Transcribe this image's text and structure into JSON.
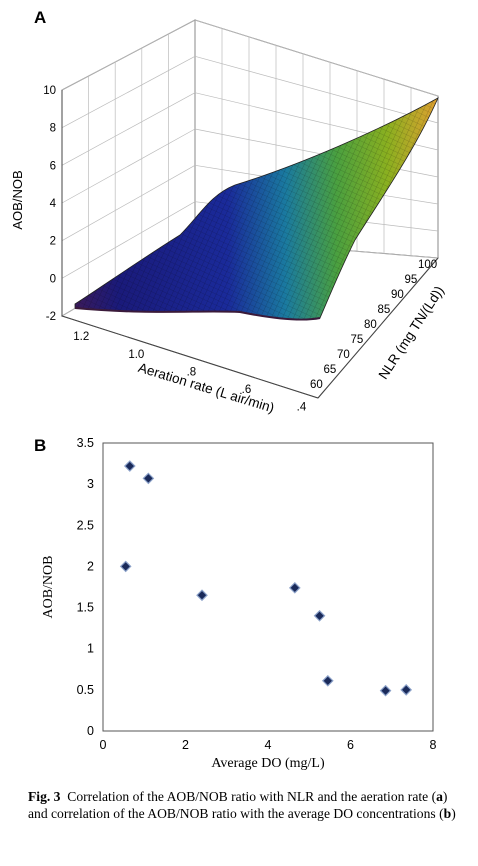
{
  "panel_a": {
    "letter": "A",
    "zlabel": "AOB/NOB",
    "xlabel": "Aeration rate (L air/min)",
    "ylabel": "NLR (mg TN/(Ld))",
    "z_ticks": [
      "10",
      "8",
      "6",
      "4",
      "2",
      "0",
      "-2"
    ],
    "x_ticks": [
      "1.2",
      "1.0",
      ".8",
      ".6",
      ".4"
    ],
    "y_ticks": [
      "100",
      "95",
      "90",
      "85",
      "80",
      "75",
      "70",
      "65",
      "60"
    ]
  },
  "panel_b": {
    "letter": "B",
    "ylabel": "AOB/NOB",
    "xlabel": "Average DO (mg/L)",
    "y_ticks": [
      "3.5",
      "3",
      "2.5",
      "2",
      "1.5",
      "1",
      "0.5",
      "0"
    ],
    "x_ticks": [
      "0",
      "2",
      "4",
      "6",
      "8"
    ]
  },
  "chart_data": [
    {
      "type": "surface",
      "xlabel": "Aeration rate (L air/min)",
      "ylabel": "NLR (mg TN/(Ld))",
      "zlabel": "AOB/NOB",
      "xlim": [
        0.4,
        1.3
      ],
      "ylim": [
        60,
        100
      ],
      "zlim": [
        -2,
        10
      ],
      "colors": [
        "#3a1a5a",
        "#1a2a9a",
        "#1a8aa0",
        "#6ab020",
        "#e0a030"
      ]
    },
    {
      "type": "scatter",
      "xlabel": "Average DO (mg/L)",
      "ylabel": "AOB/NOB",
      "xlim": [
        0,
        8
      ],
      "ylim": [
        0,
        3.5
      ],
      "grid": false,
      "marker_color": "#1a2a5a",
      "points": [
        {
          "x": 0.55,
          "y": 2.0
        },
        {
          "x": 0.65,
          "y": 3.22
        },
        {
          "x": 1.1,
          "y": 3.07
        },
        {
          "x": 2.4,
          "y": 1.65
        },
        {
          "x": 4.65,
          "y": 1.74
        },
        {
          "x": 5.25,
          "y": 1.4
        },
        {
          "x": 5.45,
          "y": 0.61
        },
        {
          "x": 6.85,
          "y": 0.49
        },
        {
          "x": 7.35,
          "y": 0.5
        }
      ]
    }
  ],
  "caption": {
    "label": "Fig. 3",
    "text_1": "Correlation of the AOB/NOB ratio with NLR and the aeration rate (",
    "ref_a": "a",
    "text_2": ") and correlation of the AOB/NOB ratio with the average DO concentrations (",
    "ref_b": "b",
    "text_3": ")"
  }
}
